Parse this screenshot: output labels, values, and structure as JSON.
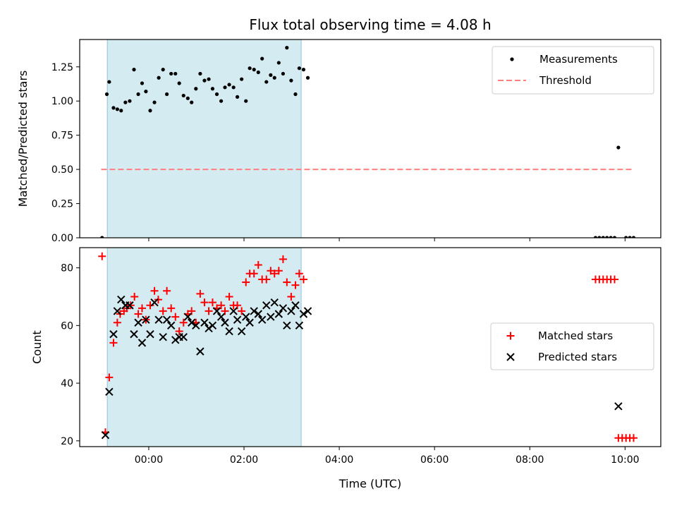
{
  "chart_data": {
    "type": "scatter",
    "title": "Flux total observing time = 4.08 h",
    "xlabel": "Time (UTC)",
    "x_unit": "hours relative to 00:00 UTC",
    "xlim": [
      -1.45,
      10.75
    ],
    "xticks": [
      0,
      2,
      4,
      6,
      8,
      10
    ],
    "xtick_labels": [
      "00:00",
      "02:00",
      "04:00",
      "06:00",
      "08:00",
      "10:00"
    ],
    "shaded_interval": [
      -0.87,
      3.2
    ],
    "panels": [
      {
        "ylabel": "Matched/Predicted stars",
        "ylim": [
          0,
          1.45
        ],
        "yticks": [
          0,
          0.25,
          0.5,
          0.75,
          1.0,
          1.25
        ],
        "ytick_labels": [
          "0.00",
          "0.25",
          "0.50",
          "0.75",
          "1.00",
          "1.25"
        ],
        "legend": [
          "Measurements",
          "Threshold"
        ],
        "legend_position": "top-right",
        "threshold": {
          "name": "Threshold",
          "y": 0.5,
          "x_range": [
            -1.0,
            10.15
          ],
          "color": "#ff7f7f"
        },
        "series": [
          {
            "name": "Measurements",
            "marker": "dot",
            "color": "#000000",
            "points": [
              [
                -0.98,
                0.0
              ],
              [
                -0.88,
                1.05
              ],
              [
                -0.83,
                1.14
              ],
              [
                -0.74,
                0.95
              ],
              [
                -0.66,
                0.94
              ],
              [
                -0.58,
                0.93
              ],
              [
                -0.49,
                0.99
              ],
              [
                -0.4,
                1.0
              ],
              [
                -0.31,
                1.23
              ],
              [
                -0.22,
                1.05
              ],
              [
                -0.14,
                1.13
              ],
              [
                -0.06,
                1.07
              ],
              [
                0.03,
                0.93
              ],
              [
                0.12,
                0.99
              ],
              [
                0.21,
                1.17
              ],
              [
                0.3,
                1.23
              ],
              [
                0.38,
                1.05
              ],
              [
                0.47,
                1.2
              ],
              [
                0.56,
                1.2
              ],
              [
                0.64,
                1.13
              ],
              [
                0.73,
                1.04
              ],
              [
                0.82,
                1.02
              ],
              [
                0.9,
                0.99
              ],
              [
                0.99,
                1.09
              ],
              [
                1.08,
                1.2
              ],
              [
                1.17,
                1.15
              ],
              [
                1.26,
                1.16
              ],
              [
                1.34,
                1.09
              ],
              [
                1.43,
                1.05
              ],
              [
                1.52,
                1.0
              ],
              [
                1.6,
                1.1
              ],
              [
                1.69,
                1.12
              ],
              [
                1.78,
                1.1
              ],
              [
                1.86,
                1.03
              ],
              [
                1.95,
                1.16
              ],
              [
                2.04,
                1.0
              ],
              [
                2.12,
                1.24
              ],
              [
                2.21,
                1.23
              ],
              [
                2.3,
                1.21
              ],
              [
                2.38,
                1.31
              ],
              [
                2.47,
                1.14
              ],
              [
                2.56,
                1.19
              ],
              [
                2.64,
                1.17
              ],
              [
                2.73,
                1.28
              ],
              [
                2.82,
                1.2
              ],
              [
                2.9,
                1.39
              ],
              [
                2.99,
                1.15
              ],
              [
                3.08,
                1.05
              ],
              [
                3.16,
                1.24
              ],
              [
                3.25,
                1.23
              ],
              [
                3.34,
                1.17
              ],
              [
                9.38,
                0.0
              ],
              [
                9.46,
                0.0
              ],
              [
                9.54,
                0.0
              ],
              [
                9.62,
                0.0
              ],
              [
                9.7,
                0.0
              ],
              [
                9.78,
                0.0
              ],
              [
                9.86,
                0.66
              ],
              [
                10.02,
                0.0
              ],
              [
                10.1,
                0.0
              ],
              [
                10.18,
                0.0
              ]
            ]
          }
        ]
      },
      {
        "ylabel": "Count",
        "ylim": [
          18,
          87
        ],
        "yticks": [
          20,
          40,
          60,
          80
        ],
        "ytick_labels": [
          "20",
          "40",
          "60",
          "80"
        ],
        "legend": [
          "Matched stars",
          "Predicted stars"
        ],
        "legend_position": "center-right",
        "series": [
          {
            "name": "Matched stars",
            "marker": "plus",
            "color": "#ff0000",
            "points": [
              [
                -0.98,
                84
              ],
              [
                -0.91,
                23
              ],
              [
                -0.83,
                42
              ],
              [
                -0.74,
                54
              ],
              [
                -0.66,
                61
              ],
              [
                -0.6,
                64
              ],
              [
                -0.52,
                65
              ],
              [
                -0.46,
                66
              ],
              [
                -0.38,
                67
              ],
              [
                -0.3,
                70
              ],
              [
                -0.22,
                64
              ],
              [
                -0.14,
                66
              ],
              [
                -0.06,
                62
              ],
              [
                0.03,
                67
              ],
              [
                0.12,
                72
              ],
              [
                0.2,
                69
              ],
              [
                0.3,
                65
              ],
              [
                0.38,
                72
              ],
              [
                0.47,
                66
              ],
              [
                0.56,
                63
              ],
              [
                0.64,
                58
              ],
              [
                0.73,
                61
              ],
              [
                0.82,
                64
              ],
              [
                0.9,
                65
              ],
              [
                0.99,
                61
              ],
              [
                1.08,
                71
              ],
              [
                1.17,
                68
              ],
              [
                1.26,
                65
              ],
              [
                1.34,
                68
              ],
              [
                1.43,
                66
              ],
              [
                1.52,
                67
              ],
              [
                1.6,
                65
              ],
              [
                1.69,
                70
              ],
              [
                1.78,
                67
              ],
              [
                1.86,
                67
              ],
              [
                1.95,
                65
              ],
              [
                2.04,
                75
              ],
              [
                2.12,
                78
              ],
              [
                2.21,
                78
              ],
              [
                2.3,
                81
              ],
              [
                2.38,
                76
              ],
              [
                2.47,
                76
              ],
              [
                2.56,
                79
              ],
              [
                2.64,
                78
              ],
              [
                2.73,
                79
              ],
              [
                2.82,
                83
              ],
              [
                2.9,
                75
              ],
              [
                2.99,
                70
              ],
              [
                3.08,
                74
              ],
              [
                3.16,
                78
              ],
              [
                3.25,
                76
              ],
              [
                9.38,
                76
              ],
              [
                9.46,
                76
              ],
              [
                9.54,
                76
              ],
              [
                9.62,
                76
              ],
              [
                9.7,
                76
              ],
              [
                9.78,
                76
              ],
              [
                9.86,
                21
              ],
              [
                9.94,
                21
              ],
              [
                10.02,
                21
              ],
              [
                10.1,
                21
              ],
              [
                10.18,
                21
              ]
            ]
          },
          {
            "name": "Predicted stars",
            "marker": "x",
            "color": "#000000",
            "points": [
              [
                -0.91,
                22
              ],
              [
                -0.83,
                37
              ],
              [
                -0.74,
                57
              ],
              [
                -0.66,
                65
              ],
              [
                -0.58,
                69
              ],
              [
                -0.49,
                67
              ],
              [
                -0.4,
                67
              ],
              [
                -0.31,
                57
              ],
              [
                -0.22,
                61
              ],
              [
                -0.14,
                54
              ],
              [
                -0.06,
                62
              ],
              [
                0.03,
                57
              ],
              [
                0.12,
                68
              ],
              [
                0.21,
                62
              ],
              [
                0.3,
                56
              ],
              [
                0.38,
                62
              ],
              [
                0.47,
                60
              ],
              [
                0.56,
                55
              ],
              [
                0.64,
                56
              ],
              [
                0.73,
                56
              ],
              [
                0.82,
                63
              ],
              [
                0.9,
                61
              ],
              [
                0.99,
                60
              ],
              [
                1.08,
                51
              ],
              [
                1.17,
                61
              ],
              [
                1.26,
                59
              ],
              [
                1.34,
                60
              ],
              [
                1.43,
                65
              ],
              [
                1.52,
                63
              ],
              [
                1.6,
                61
              ],
              [
                1.69,
                58
              ],
              [
                1.78,
                65
              ],
              [
                1.86,
                62
              ],
              [
                1.95,
                58
              ],
              [
                2.04,
                63
              ],
              [
                2.12,
                61
              ],
              [
                2.21,
                65
              ],
              [
                2.3,
                64
              ],
              [
                2.38,
                62
              ],
              [
                2.47,
                67
              ],
              [
                2.56,
                63
              ],
              [
                2.64,
                68
              ],
              [
                2.73,
                64
              ],
              [
                2.82,
                66
              ],
              [
                2.9,
                60
              ],
              [
                2.99,
                65
              ],
              [
                3.08,
                67
              ],
              [
                3.16,
                60
              ],
              [
                3.25,
                64
              ],
              [
                3.34,
                65
              ],
              [
                9.86,
                32
              ]
            ]
          }
        ]
      }
    ]
  }
}
